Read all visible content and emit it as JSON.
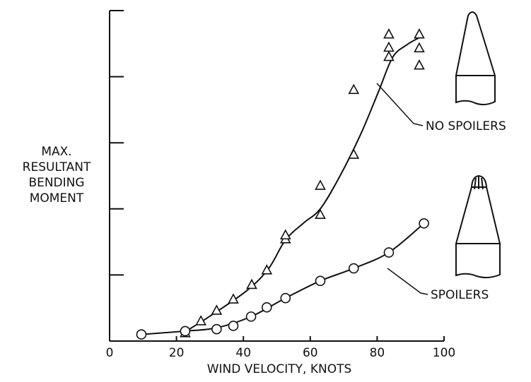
{
  "chart_data": {
    "type": "scatter",
    "x_label": "WIND VELOCITY, KNOTS",
    "y_label": [
      "MAX.",
      "RESULTANT",
      "BENDING",
      "MOMENT"
    ],
    "xlim": [
      0,
      100
    ],
    "xticks": [
      0,
      20,
      40,
      60,
      80,
      100
    ],
    "ylim": [
      0,
      5
    ],
    "yticks": [
      0,
      1,
      2,
      3,
      4,
      5
    ],
    "series": [
      {
        "name": "NO SPOILERS",
        "marker": "triangle",
        "color": "#111111",
        "x": [
          22.6,
          27.3,
          32,
          37,
          42.5,
          47,
          52.6,
          52.6,
          63,
          63,
          73,
          73,
          83.5,
          83.5,
          83.5,
          92.6,
          92.6,
          92.6
        ],
        "values": [
          0.12,
          0.3,
          0.46,
          0.63,
          0.85,
          1.07,
          1.54,
          1.6,
          1.91,
          2.35,
          2.82,
          3.8,
          4.64,
          4.44,
          4.3,
          4.64,
          4.43,
          4.17
        ],
        "curve_x": [
          22.6,
          30.7,
          41.2,
          47.6,
          52.6,
          58.1,
          63,
          68.7,
          75,
          80.3,
          84.6,
          88.8,
          92.6
        ],
        "curve_y": [
          0.14,
          0.4,
          0.77,
          1.1,
          1.53,
          1.79,
          2.0,
          2.48,
          3.12,
          3.76,
          4.29,
          4.48,
          4.59
        ]
      },
      {
        "name": "SPOILERS",
        "marker": "circle",
        "color": "#111111",
        "x": [
          9.5,
          22.6,
          32,
          37,
          42.3,
          47,
          52.6,
          63,
          73,
          83.5,
          94
        ],
        "values": [
          0.1,
          0.15,
          0.18,
          0.23,
          0.37,
          0.51,
          0.65,
          0.91,
          1.1,
          1.34,
          1.78
        ],
        "curve_x": [
          9.5,
          22.6,
          32,
          42.3,
          52.6,
          63,
          73,
          83.5,
          94
        ],
        "curve_y": [
          0.1,
          0.15,
          0.2,
          0.37,
          0.65,
          0.91,
          1.1,
          1.34,
          1.78
        ]
      }
    ]
  }
}
